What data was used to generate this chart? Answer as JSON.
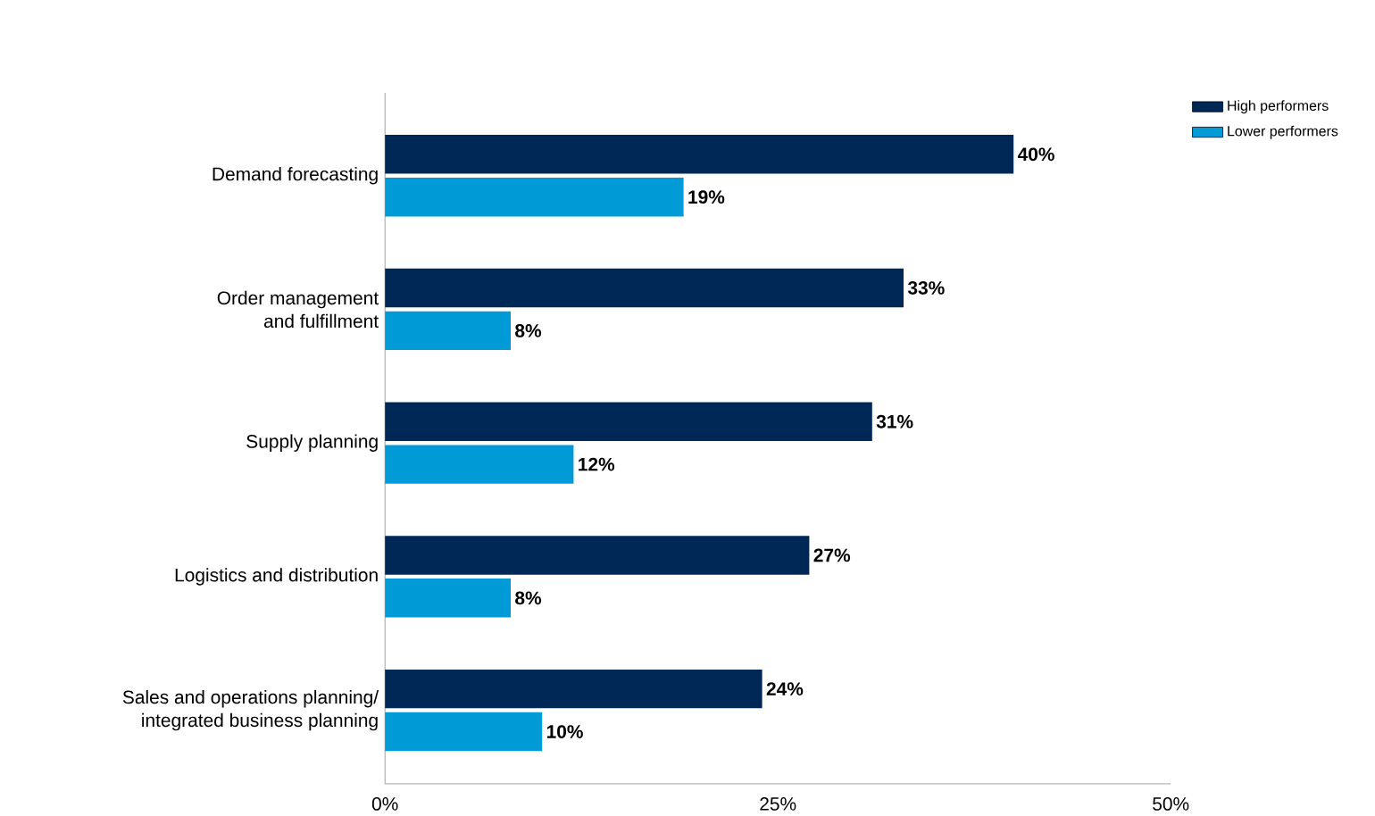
{
  "chart_data": {
    "type": "bar",
    "orientation": "horizontal",
    "categories": [
      "Demand forecasting",
      "Order management\nand fulfillment",
      "Supply planning",
      "Logistics and distribution",
      "Sales and operations planning/\nintegrated business planning"
    ],
    "series": [
      {
        "name": "High performers",
        "color": "#002856",
        "values": [
          40,
          33,
          31,
          27,
          24
        ],
        "value_labels": [
          "40%",
          "33%",
          "31%",
          "27%",
          "24%"
        ]
      },
      {
        "name": "Lower performers",
        "color": "#009bd6",
        "values": [
          19,
          8,
          12,
          8,
          10
        ],
        "value_labels": [
          "19%",
          "8%",
          "12%",
          "8%",
          "10%"
        ]
      }
    ],
    "xlim": [
      0,
      50
    ],
    "xticks": [
      {
        "value": 0,
        "label": "0%"
      },
      {
        "value": 25,
        "label": "25%"
      },
      {
        "value": 50,
        "label": "50%"
      }
    ],
    "grid": false,
    "legend": "top right"
  }
}
